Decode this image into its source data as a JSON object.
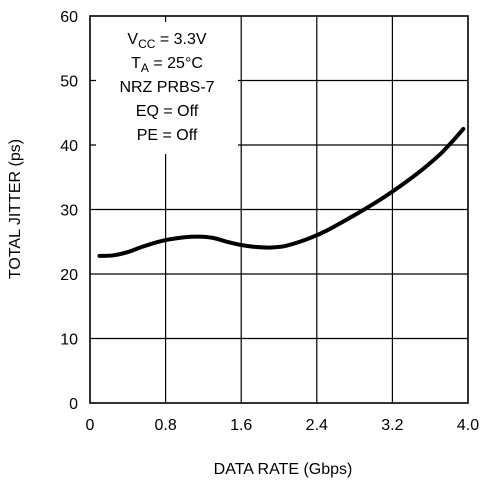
{
  "chart_data": {
    "type": "line",
    "xlabel": "DATA RATE (Gbps)",
    "ylabel": "TOTAL JITTER (ps)",
    "xlim": [
      0,
      4.0
    ],
    "ylim": [
      0,
      60
    ],
    "x_ticks": [
      "0",
      "0.8",
      "1.6",
      "2.4",
      "3.2",
      "4.0"
    ],
    "y_ticks": [
      "0",
      "10",
      "20",
      "30",
      "40",
      "50",
      "60"
    ],
    "grid": true,
    "annotations": [
      {
        "main": "V",
        "sub": "CC",
        "rest": " = 3.3V"
      },
      {
        "main": "T",
        "sub": "A",
        "rest": " = 25°C"
      },
      {
        "main": "NRZ PRBS-7",
        "sub": "",
        "rest": ""
      },
      {
        "main": "EQ = Off",
        "sub": "",
        "rest": ""
      },
      {
        "main": "PE = Off",
        "sub": "",
        "rest": ""
      }
    ],
    "series": [
      {
        "x": [
          0.1,
          0.25,
          0.4,
          0.55,
          0.7,
          0.85,
          1.0,
          1.15,
          1.3,
          1.45,
          1.6,
          1.75,
          1.9,
          2.05,
          2.2,
          2.35,
          2.5,
          2.7,
          2.9,
          3.1,
          3.3,
          3.5,
          3.7,
          3.85,
          3.95
        ],
        "y": [
          22.8,
          22.9,
          23.4,
          24.2,
          24.9,
          25.4,
          25.7,
          25.8,
          25.6,
          25.0,
          24.5,
          24.2,
          24.1,
          24.3,
          24.9,
          25.7,
          26.7,
          28.3,
          30.0,
          31.8,
          33.8,
          36.0,
          38.5,
          40.8,
          42.5
        ]
      }
    ]
  }
}
